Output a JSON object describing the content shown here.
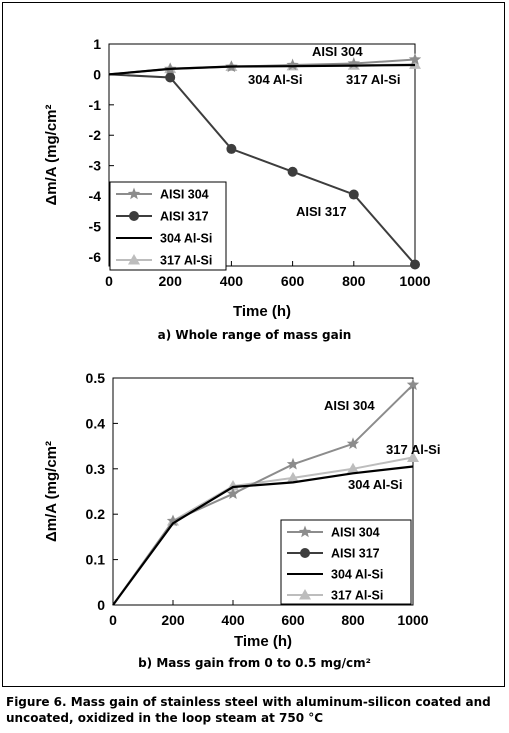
{
  "figure_caption": "Figure 6. Mass gain of stainless steel with aluminum-silicon coated and uncoated, oxidized in the loop steam at 750 °C",
  "chart_data": [
    {
      "type": "line",
      "caption": "a) Whole range of mass gain",
      "xlabel": "Time (h)",
      "ylabel": "Δm/A (mg/cm²",
      "xlim": [
        0,
        1000
      ],
      "ylim": [
        -6.3,
        1
      ],
      "xticks": [
        "0",
        "200",
        "400",
        "600",
        "800",
        "1000"
      ],
      "yticks": [
        "1",
        "0",
        "-1",
        "-2",
        "-3",
        "-4",
        "-5",
        "-6"
      ],
      "legend_position": "bottom-left",
      "series": [
        {
          "name": "AISI 304",
          "color": "#8c8c8c",
          "marker": "star",
          "x": [
            0,
            200,
            400,
            600,
            800,
            1000
          ],
          "y": [
            0,
            0.18,
            0.25,
            0.31,
            0.36,
            0.49
          ]
        },
        {
          "name": "AISI 317",
          "color": "#3d3d3d",
          "marker": "circle",
          "x": [
            0,
            200,
            400,
            600,
            800,
            1000
          ],
          "y": [
            0,
            -0.1,
            -2.45,
            -3.2,
            -3.95,
            -6.25
          ]
        },
        {
          "name": "304 Al-Si",
          "color": "#000000",
          "marker": "none",
          "x": [
            0,
            200,
            400,
            600,
            800,
            1000
          ],
          "y": [
            0,
            0.18,
            0.26,
            0.27,
            0.29,
            0.31
          ]
        },
        {
          "name": "317 Al-Si",
          "color": "#bdbdbd",
          "marker": "triangle",
          "x": [
            0,
            200,
            400,
            600,
            800,
            1000
          ],
          "y": [
            0,
            0.19,
            0.26,
            0.28,
            0.3,
            0.33
          ]
        }
      ],
      "annotations": [
        {
          "text": "AISI 304",
          "x": 710,
          "y": 0.55
        },
        {
          "text": "304 Al-Si",
          "x": 290,
          "y": -0.5
        },
        {
          "text": "317 Al-Si",
          "x": 800,
          "y": -0.4
        },
        {
          "text": "AISI 317",
          "x": 700,
          "y": -4.8
        }
      ]
    },
    {
      "type": "line",
      "caption": "b) Mass gain from 0 to 0.5 mg/cm²",
      "xlabel": "Time (h)",
      "ylabel": "Δm/A (mg/cm²",
      "xlim": [
        0,
        1000
      ],
      "ylim": [
        0,
        0.5
      ],
      "xticks": [
        "0",
        "200",
        "400",
        "600",
        "800",
        "1000"
      ],
      "yticks": [
        "0.5",
        "0.4",
        "0.3",
        "0.2",
        "0.1",
        "0"
      ],
      "legend_position": "bottom-right",
      "series": [
        {
          "name": "AISI 304",
          "color": "#8c8c8c",
          "marker": "star",
          "x": [
            0,
            200,
            400,
            600,
            800,
            1000
          ],
          "y": [
            0,
            0.185,
            0.245,
            0.31,
            0.355,
            0.485
          ]
        },
        {
          "name": "AISI 317",
          "color": "#3d3d3d",
          "marker": "circle",
          "x": [],
          "y": []
        },
        {
          "name": "304 Al-Si",
          "color": "#000000",
          "marker": "none",
          "x": [
            0,
            200,
            400,
            600,
            800,
            1000
          ],
          "y": [
            0,
            0.18,
            0.26,
            0.27,
            0.29,
            0.305
          ]
        },
        {
          "name": "317 Al-Si",
          "color": "#bdbdbd",
          "marker": "triangle",
          "x": [
            0,
            200,
            400,
            600,
            800,
            1000
          ],
          "y": [
            0,
            0.185,
            0.262,
            0.28,
            0.3,
            0.325
          ]
        }
      ],
      "annotations": [
        {
          "text": "AISI 304",
          "x": 710,
          "y": 0.41
        },
        {
          "text": "317 Al-Si",
          "x": 920,
          "y": 0.325
        },
        {
          "text": "304 Al-Si",
          "x": 890,
          "y": 0.26
        }
      ]
    }
  ]
}
